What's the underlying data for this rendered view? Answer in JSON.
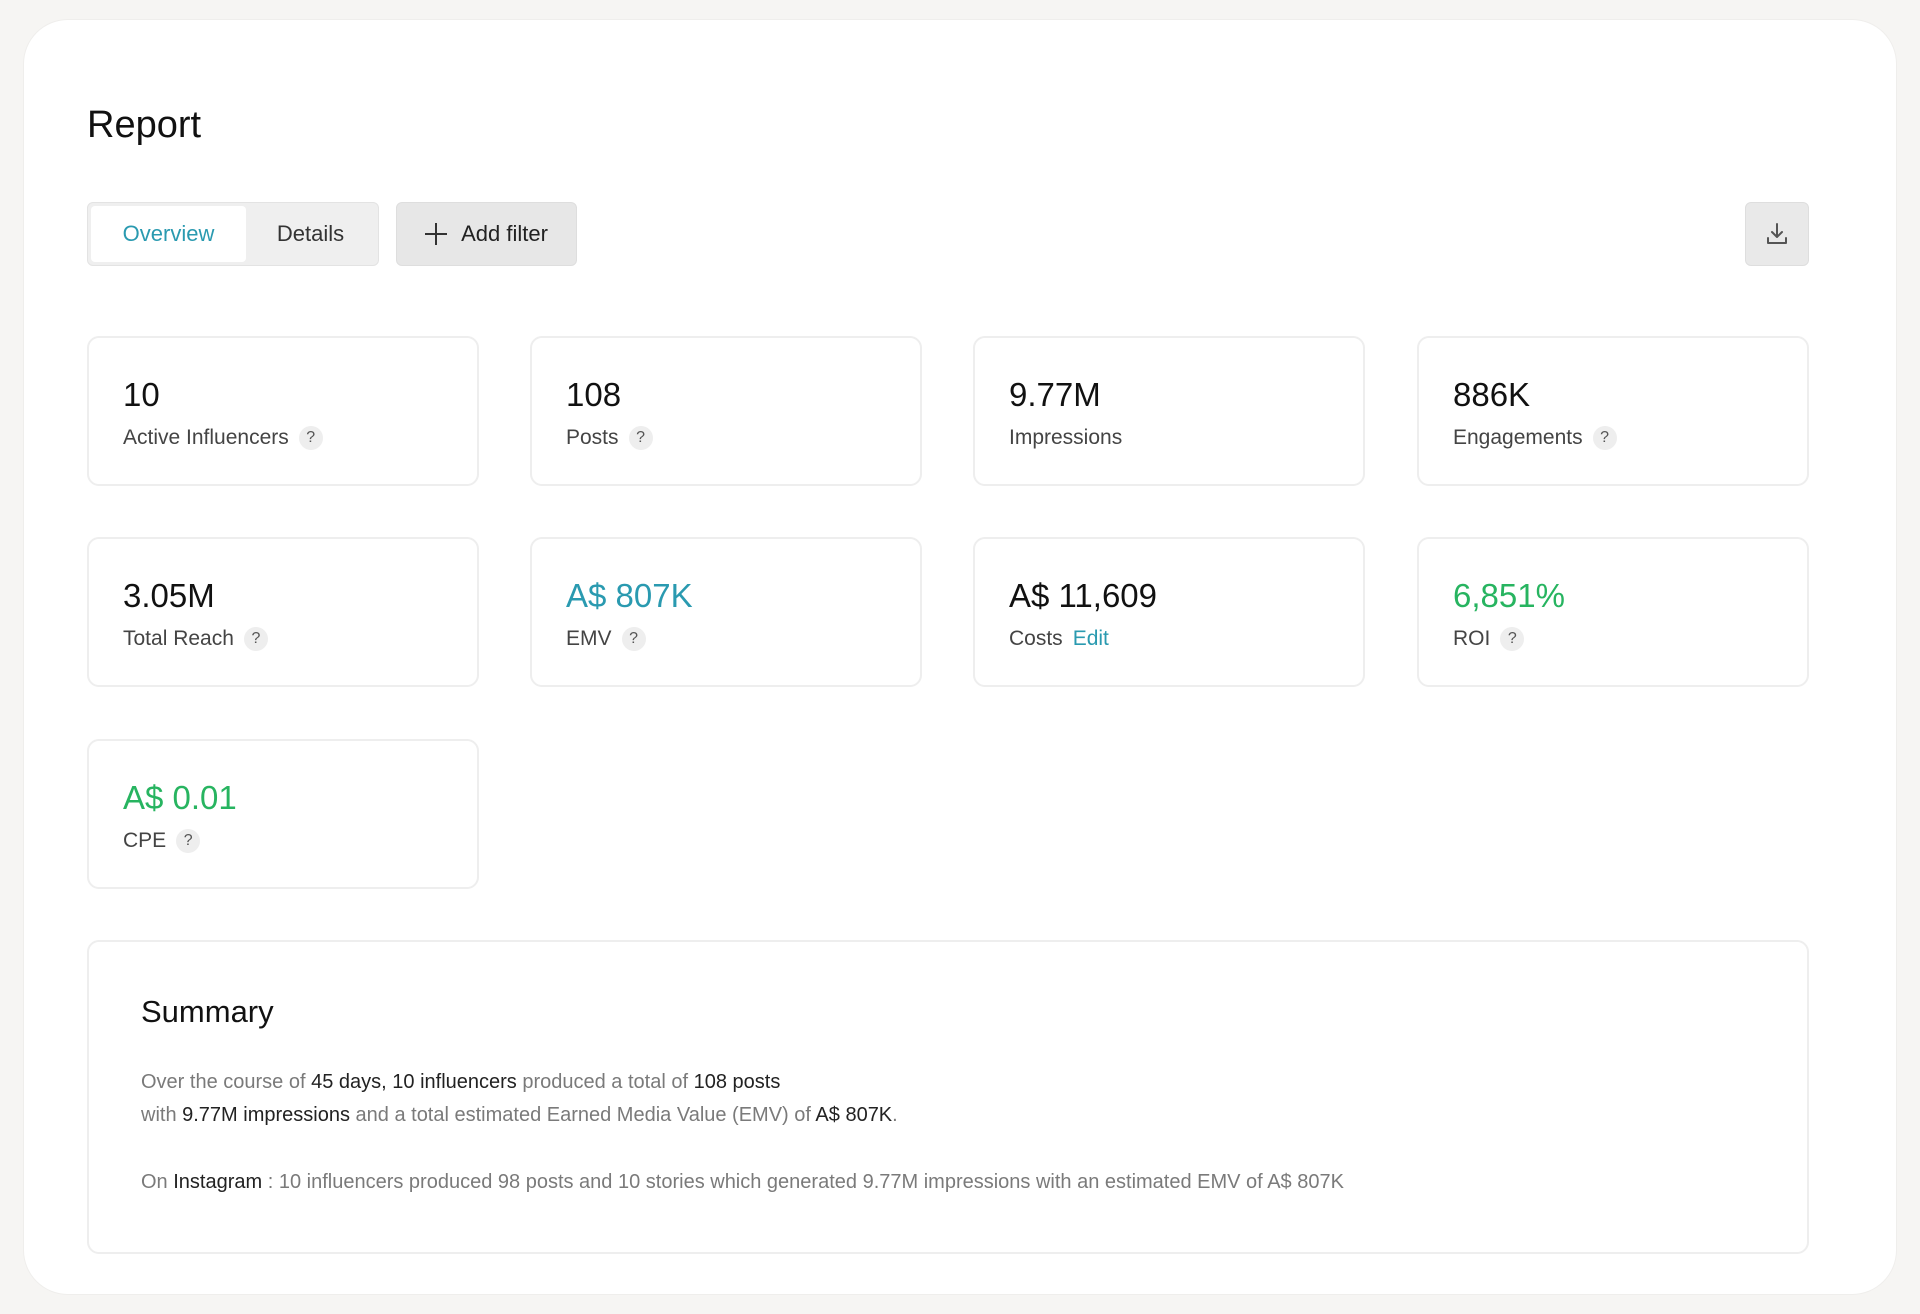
{
  "page": {
    "title": "Report"
  },
  "toolbar": {
    "tabs": [
      {
        "label": "Overview",
        "active": true
      },
      {
        "label": "Details",
        "active": false
      }
    ],
    "add_filter_label": "Add filter",
    "download_icon": "download-icon"
  },
  "colors": {
    "accent_teal": "#2a9ab0",
    "positive_green": "#27b460"
  },
  "metrics": [
    {
      "value": "10",
      "label": "Active Influencers",
      "help": "?"
    },
    {
      "value": "108",
      "label": "Posts",
      "help": "?"
    },
    {
      "value": "9.77M",
      "label": "Impressions"
    },
    {
      "value": "886K",
      "label": "Engagements",
      "help": "?"
    },
    {
      "value": "3.05M",
      "label": "Total Reach",
      "help": "?"
    },
    {
      "value": "A$ 807K",
      "label": "EMV",
      "help": "?"
    },
    {
      "value": "A$ 11,609",
      "label": "Costs",
      "link": "Edit"
    },
    {
      "value": "6,851%",
      "label": "ROI",
      "help": "?"
    },
    {
      "value": "A$ 0.01",
      "label": "CPE",
      "help": "?"
    }
  ],
  "summary": {
    "title": "Summary",
    "p1": {
      "t1": "Over the course of ",
      "days": "45 days",
      "t2": ", ",
      "influencers": "10 influencers",
      "t3": " produced a total of ",
      "posts": "108 posts"
    },
    "p2": {
      "t1": "with ",
      "impressions": "9.77M impressions",
      "t2": " and a total estimated Earned Media Value (EMV) of ",
      "emv": "A$ 807K",
      "t3": "."
    },
    "p3": {
      "t1": "On ",
      "platform": "Instagram",
      "t2": " : 10 influencers produced 98 posts and 10 stories which generated 9.77M impressions with an estimated EMV of A$ 807K"
    }
  }
}
